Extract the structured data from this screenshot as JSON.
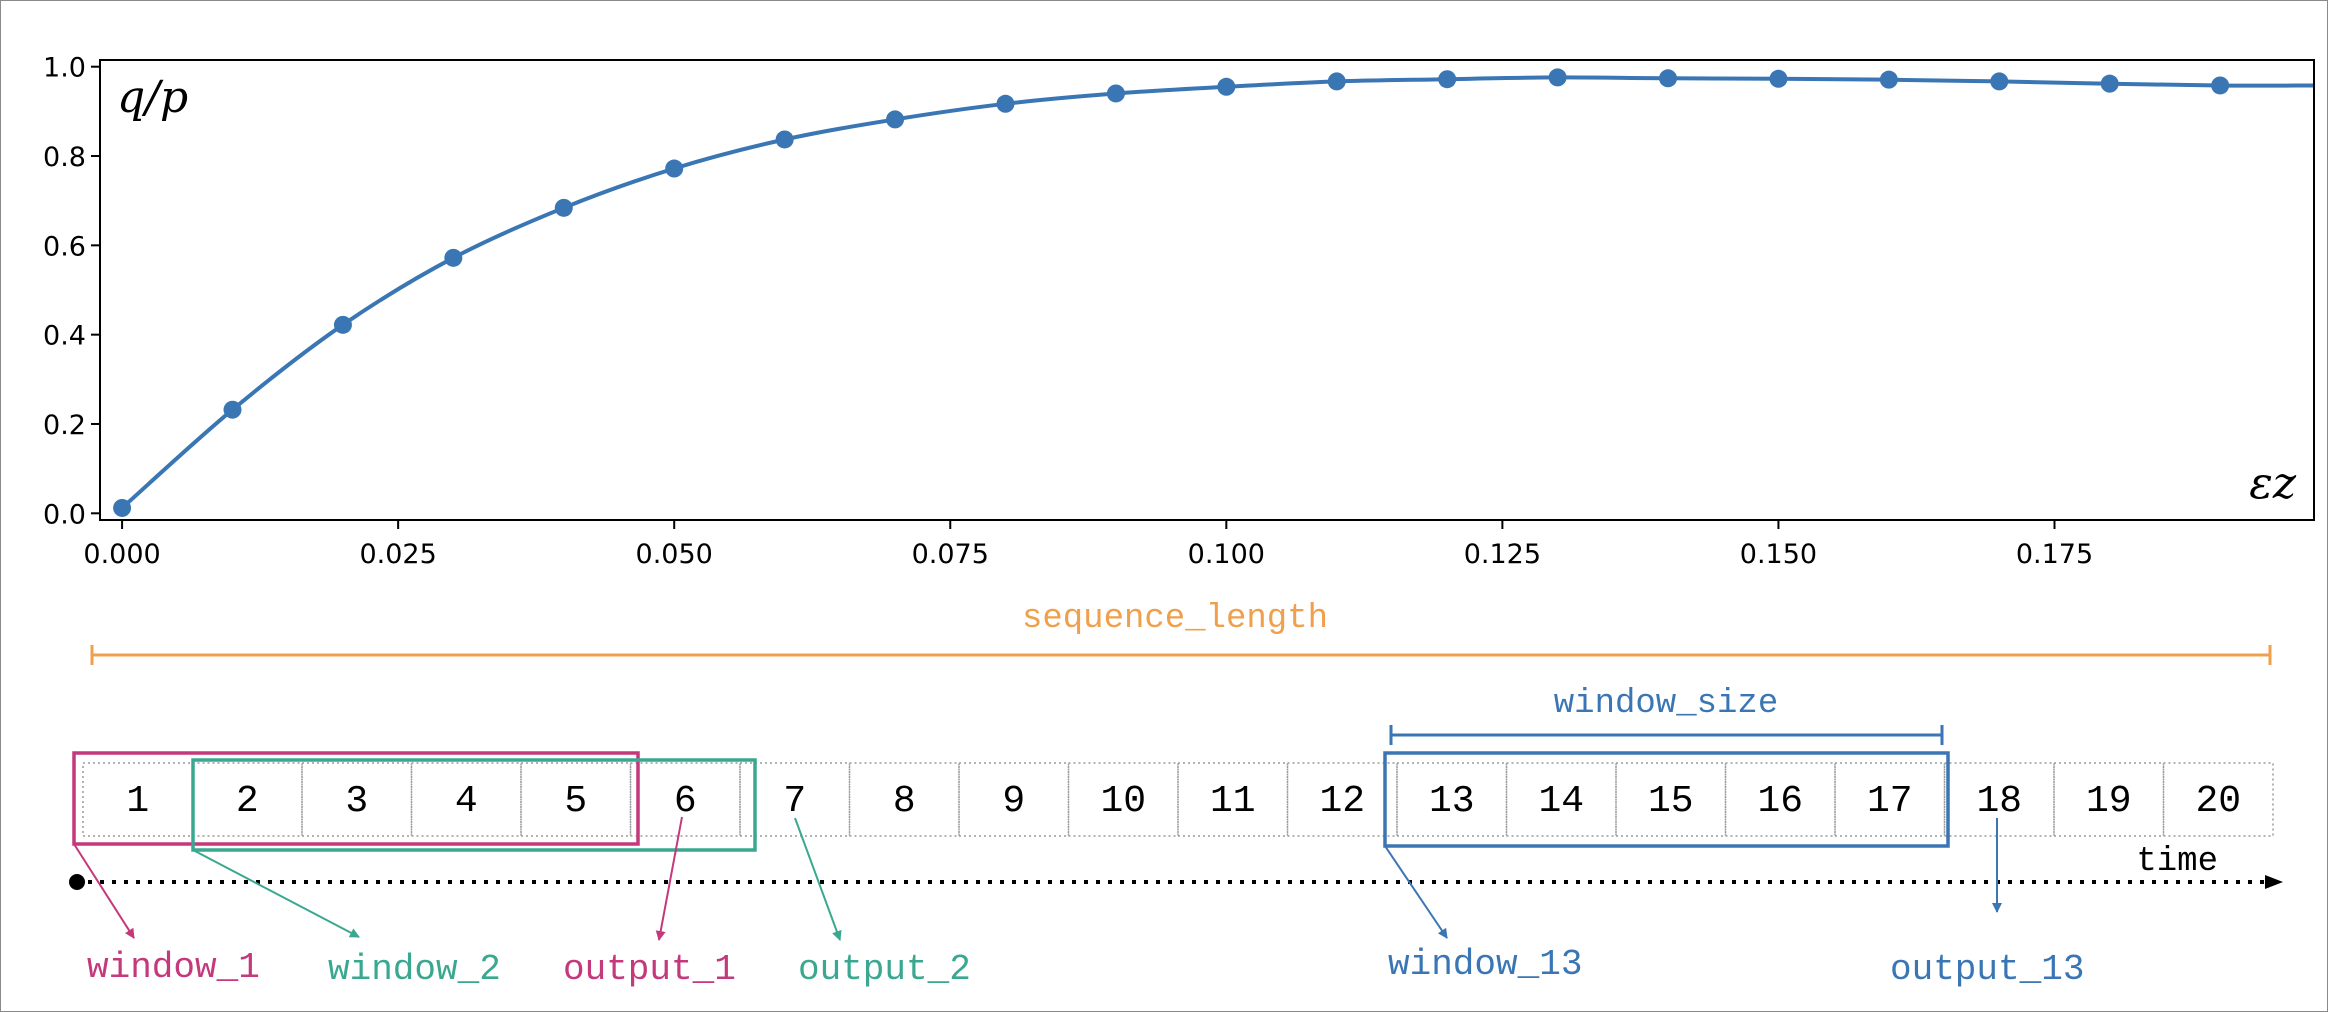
{
  "colors": {
    "series": "#3a76b4",
    "magenta": "#c4387c",
    "teal": "#3aa890",
    "orange": "#f0a04c",
    "blue_annot": "#3a76b4"
  },
  "chart_data": {
    "type": "line",
    "xlabel": "εz",
    "ylabel": "q/p",
    "xlim": [
      -0.002,
      0.1985
    ],
    "ylim": [
      -0.015,
      1.015
    ],
    "x_ticks": [
      "0.000",
      "0.025",
      "0.050",
      "0.075",
      "0.100",
      "0.125",
      "0.150",
      "0.175"
    ],
    "x_tick_values": [
      0,
      0.025,
      0.05,
      0.075,
      0.1,
      0.125,
      0.15,
      0.175
    ],
    "y_ticks": [
      "0.0",
      "0.2",
      "0.4",
      "0.6",
      "0.8",
      "1.0"
    ],
    "y_tick_values": [
      0,
      0.2,
      0.4,
      0.6,
      0.8,
      1.0
    ],
    "series": [
      {
        "x": [
          0,
          0.01,
          0.02,
          0.03,
          0.04,
          0.05,
          0.06,
          0.07,
          0.08,
          0.09,
          0.1,
          0.11,
          0.12,
          0.13,
          0.14,
          0.15,
          0.16,
          0.17,
          0.18,
          0.19
        ],
        "values": [
          0.012,
          0.232,
          0.422,
          0.572,
          0.684,
          0.772,
          0.837,
          0.882,
          0.917,
          0.94,
          0.955,
          0.967,
          0.972,
          0.976,
          0.974,
          0.973,
          0.971,
          0.967,
          0.962,
          0.958
        ]
      }
    ],
    "curve_end": [
      0.1985,
      0.958
    ]
  },
  "diagram": {
    "sequence_length_label": "sequence_length",
    "window_size_label": "window_size",
    "time_label": "time",
    "cells": [
      "1",
      "2",
      "3",
      "4",
      "5",
      "6",
      "7",
      "8",
      "9",
      "10",
      "11",
      "12",
      "13",
      "14",
      "15",
      "16",
      "17",
      "18",
      "19",
      "20"
    ],
    "labels": {
      "window_1": "window_1",
      "window_2": "window_2",
      "output_1": "output_1",
      "output_2": "output_2",
      "window_13": "window_13",
      "output_13": "output_13"
    }
  }
}
